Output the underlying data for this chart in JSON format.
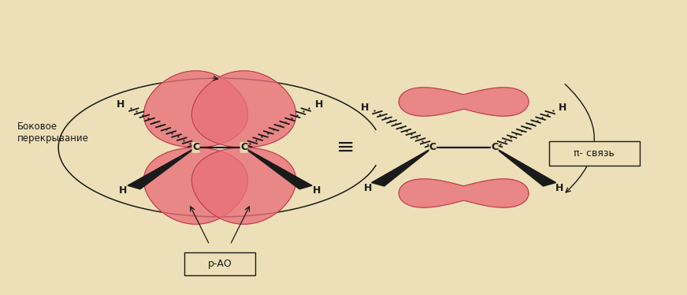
{
  "bg_color": "#ede0b8",
  "orbital_color": "#e8707a",
  "orbital_edge_color": "#b03040",
  "orbital_alpha": 0.8,
  "text_color": "#1a1a1a",
  "bond_color": "#1a1a1a",
  "label_bokove": "Боковое\nперекрывание",
  "label_pao": "р-АО",
  "label_pi": "π- связь",
  "lc1x": 0.285,
  "lc1y": 0.5,
  "lc2x": 0.355,
  "lc2y": 0.5,
  "rc1x": 0.63,
  "rc1y": 0.5,
  "rc2x": 0.72,
  "rc2y": 0.5
}
